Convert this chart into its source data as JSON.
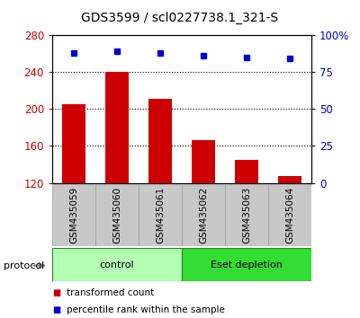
{
  "title": "GDS3599 / scl0227738.1_321-S",
  "samples": [
    "GSM435059",
    "GSM435060",
    "GSM435061",
    "GSM435062",
    "GSM435063",
    "GSM435064"
  ],
  "transformed_counts": [
    205,
    240,
    211,
    166,
    145,
    127
  ],
  "percentile_ranks": [
    88,
    89,
    88,
    86,
    85,
    84
  ],
  "ylim_left": [
    120,
    280
  ],
  "ylim_right": [
    0,
    100
  ],
  "yticks_left": [
    120,
    160,
    200,
    240,
    280
  ],
  "yticks_right": [
    0,
    25,
    50,
    75,
    100
  ],
  "ytick_labels_right": [
    "0",
    "25",
    "50",
    "75",
    "100%"
  ],
  "bar_color": "#cc0000",
  "dot_color": "#0000cc",
  "grid_color": "#000000",
  "groups": [
    {
      "label": "control",
      "start": 0,
      "end": 3,
      "color": "#b3ffb3"
    },
    {
      "label": "Eset depletion",
      "start": 3,
      "end": 6,
      "color": "#33dd33"
    }
  ],
  "protocol_label": "protocol",
  "legend_items": [
    {
      "color": "#cc0000",
      "label": "transformed count"
    },
    {
      "color": "#0000cc",
      "label": "percentile rank within the sample"
    }
  ],
  "background_color": "#ffffff",
  "tick_area_color": "#c8c8c8",
  "gridlines_at": [
    160,
    200,
    240
  ]
}
